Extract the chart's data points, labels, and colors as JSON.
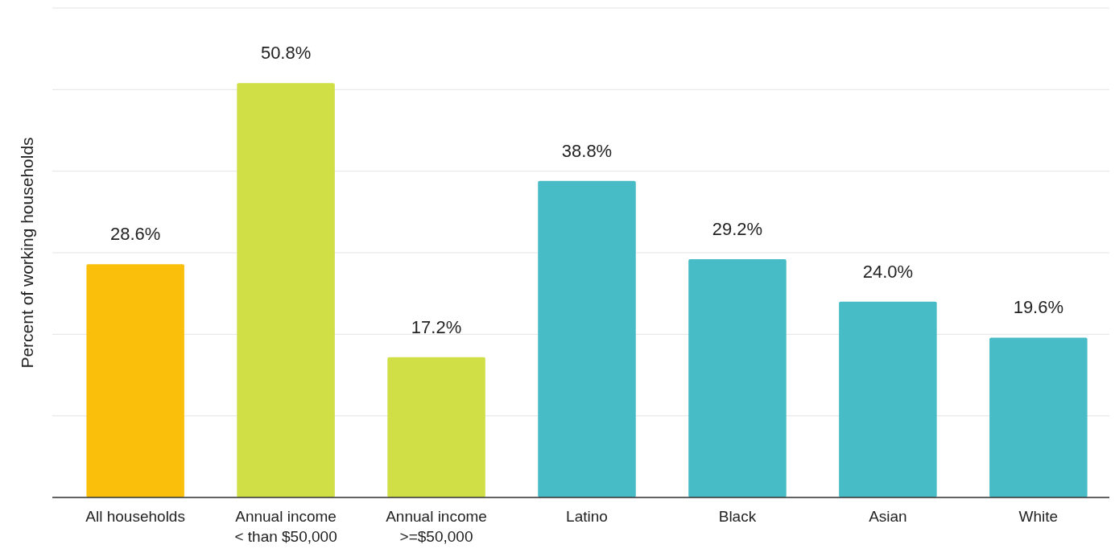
{
  "chart_data": {
    "type": "bar",
    "ylabel": "Percent of working households",
    "categories": [
      "All households",
      "Annual income\n< than $50,000",
      "Annual income\n>=$50,000",
      "Latino",
      "Black",
      "Asian",
      "White"
    ],
    "values": [
      28.6,
      50.8,
      17.2,
      38.8,
      29.2,
      24.0,
      19.6
    ],
    "colors": [
      "#f9bf0a",
      "#d0df45",
      "#d0df45",
      "#47bcc6",
      "#47bcc6",
      "#47bcc6",
      "#47bcc6"
    ],
    "value_labels": [
      "28.6%",
      "50.8%",
      "17.2%",
      "38.8%",
      "29.2%",
      "24.0%",
      "19.6%"
    ],
    "ylim": [
      0,
      60
    ],
    "yticks": [
      {
        "value": 0,
        "label": null
      },
      {
        "value": 10,
        "label": null
      },
      {
        "value": 20,
        "label": null
      },
      {
        "value": 30,
        "label": null
      },
      {
        "value": 40,
        "label": null
      },
      {
        "value": 50,
        "label": null
      },
      {
        "value": 60,
        "label": null
      }
    ],
    "grid": "y",
    "tick_labels": "x"
  }
}
